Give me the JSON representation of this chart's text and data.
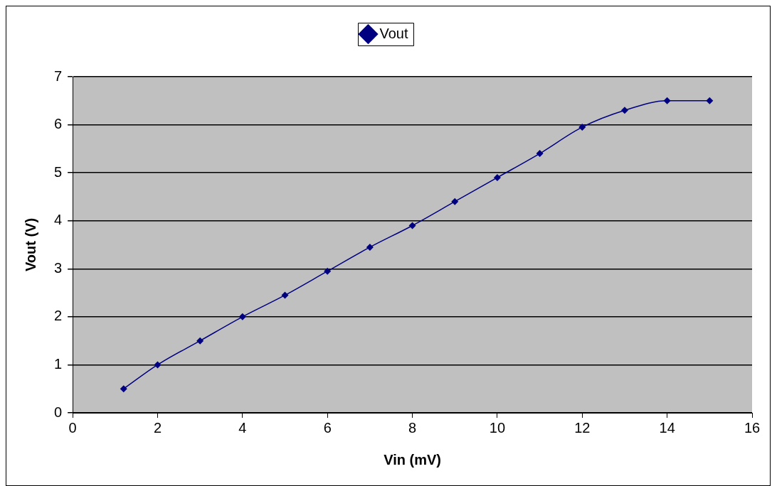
{
  "chart_data": {
    "type": "line",
    "xlabel": "Vin (mV)",
    "ylabel": "Vout (V)",
    "x": [
      1.2,
      2,
      3,
      4,
      5,
      6,
      7,
      8,
      9,
      10,
      11,
      12,
      13,
      14,
      15
    ],
    "series": [
      {
        "name": "Vout",
        "color": "#000080",
        "values": [
          0.5,
          1.0,
          1.5,
          2.0,
          2.45,
          2.95,
          3.45,
          3.9,
          4.4,
          4.9,
          5.4,
          5.95,
          6.3,
          6.5,
          6.5
        ]
      }
    ],
    "xlim": [
      0,
      16
    ],
    "xticks": [
      0,
      2,
      4,
      6,
      8,
      10,
      12,
      14,
      16
    ],
    "ylim": [
      0,
      7
    ],
    "yticks": [
      0,
      1,
      2,
      3,
      4,
      5,
      6,
      7
    ],
    "grid": "y",
    "legend": "top",
    "marker": "diamond",
    "line_style": "solid"
  }
}
